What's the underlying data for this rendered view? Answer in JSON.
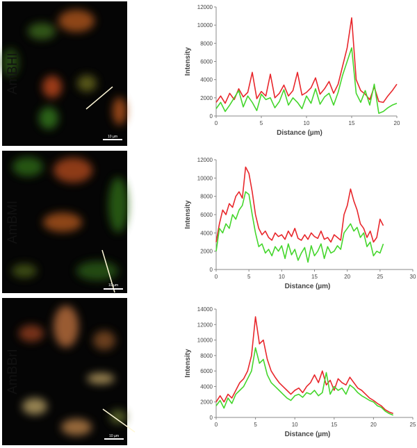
{
  "panels": [
    {
      "label": "AmBHI",
      "scale_bar": "10 µm"
    },
    {
      "label": "AmBMI",
      "scale_bar": "10 µm"
    },
    {
      "label": "AmBBrI",
      "scale_bar": "10 µm"
    }
  ],
  "chart_data": [
    {
      "type": "line",
      "xlabel": "Distance (µm)",
      "ylabel": "Intensity",
      "xlim": [
        0,
        20
      ],
      "xticks": [
        0,
        5,
        10,
        15,
        20
      ],
      "ylim": [
        0,
        12000
      ],
      "yticks": [
        0,
        2000,
        4000,
        6000,
        8000,
        10000,
        12000
      ],
      "x": [
        0,
        0.5,
        1,
        1.5,
        2,
        2.5,
        3,
        3.5,
        4,
        4.5,
        5,
        5.5,
        6,
        6.5,
        7,
        7.5,
        8,
        8.5,
        9,
        9.5,
        10,
        10.5,
        11,
        11.5,
        12,
        12.5,
        13,
        13.5,
        14,
        14.5,
        15,
        15.5,
        16,
        16.5,
        17,
        17.5,
        18,
        18.5,
        19,
        19.5,
        20
      ],
      "series": [
        {
          "color": "#e8262b",
          "values": [
            1500,
            2200,
            1400,
            2500,
            1800,
            3000,
            2100,
            2600,
            4800,
            1900,
            2700,
            2200,
            4600,
            2000,
            2500,
            3400,
            2200,
            2800,
            4800,
            2300,
            2600,
            3100,
            4200,
            2400,
            3000,
            3800,
            2500,
            3500,
            5500,
            7500,
            10800,
            4000,
            2800,
            2400,
            1800,
            3200,
            1600,
            1500,
            2200,
            2800,
            3500
          ]
        },
        {
          "color": "#44d62c",
          "values": [
            800,
            1500,
            500,
            1200,
            2000,
            2800,
            1000,
            2200,
            1500,
            600,
            2400,
            1800,
            2000,
            900,
            1600,
            2900,
            1200,
            2000,
            1500,
            800,
            2200,
            1400,
            3000,
            1300,
            2100,
            2500,
            1200,
            2600,
            4500,
            6000,
            7500,
            2500,
            1500,
            2800,
            1200,
            3500,
            300,
            500,
            900,
            1200,
            1400
          ]
        }
      ]
    },
    {
      "type": "line",
      "xlabel": "Distance (µm)",
      "ylabel": "Intensity",
      "xlim": [
        0,
        30
      ],
      "xticks": [
        0,
        5,
        10,
        15,
        20,
        25,
        30
      ],
      "ylim": [
        0,
        12000
      ],
      "yticks": [
        0,
        2000,
        4000,
        6000,
        8000,
        10000,
        12000
      ],
      "x": [
        0,
        0.5,
        1,
        1.5,
        2,
        2.5,
        3,
        3.5,
        4,
        4.5,
        5,
        5.5,
        6,
        6.5,
        7,
        7.5,
        8,
        8.5,
        9,
        9.5,
        10,
        10.5,
        11,
        11.5,
        12,
        12.5,
        13,
        13.5,
        14,
        14.5,
        15,
        15.5,
        16,
        16.5,
        17,
        17.5,
        18,
        18.5,
        19,
        19.5,
        20,
        20.5,
        21,
        21.5,
        22,
        22.5,
        23,
        23.5,
        24,
        24.5,
        25,
        25.5
      ],
      "series": [
        {
          "color": "#e8262b",
          "values": [
            3000,
            5000,
            6500,
            6000,
            7200,
            6800,
            8000,
            8500,
            7800,
            11200,
            10500,
            8500,
            6000,
            4500,
            3800,
            4200,
            3500,
            3200,
            4000,
            3600,
            3800,
            3300,
            4200,
            3600,
            4500,
            3400,
            3200,
            3800,
            3300,
            4000,
            3600,
            3400,
            4200,
            3300,
            3500,
            3000,
            3800,
            3500,
            3200,
            6000,
            7000,
            8800,
            7500,
            6500,
            5000,
            4500,
            3500,
            4200,
            3000,
            3500,
            5500,
            4800
          ]
        },
        {
          "color": "#44d62c",
          "values": [
            2000,
            4500,
            4000,
            5000,
            4500,
            6000,
            5500,
            6500,
            7000,
            8500,
            8200,
            6000,
            4000,
            2500,
            2800,
            1800,
            2200,
            1500,
            2500,
            2000,
            2600,
            1200,
            2800,
            1600,
            2200,
            1000,
            1800,
            2400,
            800,
            2600,
            1500,
            2000,
            2800,
            1200,
            2500,
            1800,
            2000,
            2600,
            2200,
            4000,
            4500,
            5000,
            4200,
            4600,
            3500,
            4000,
            2500,
            3000,
            1500,
            2000,
            1800,
            2800
          ]
        }
      ]
    },
    {
      "type": "line",
      "xlabel": "Distance (µm)",
      "ylabel": "Intensity",
      "xlim": [
        0,
        25
      ],
      "xticks": [
        0,
        5,
        10,
        15,
        20,
        25
      ],
      "ylim": [
        0,
        14000
      ],
      "yticks": [
        0,
        2000,
        4000,
        6000,
        8000,
        10000,
        12000,
        14000
      ],
      "x": [
        0,
        0.5,
        1,
        1.5,
        2,
        2.5,
        3,
        3.5,
        4,
        4.5,
        5,
        5.5,
        6,
        6.5,
        7,
        7.5,
        8,
        8.5,
        9,
        9.5,
        10,
        10.5,
        11,
        11.5,
        12,
        12.5,
        13,
        13.5,
        14,
        14.5,
        15,
        15.5,
        16,
        16.5,
        17,
        17.5,
        18,
        18.5,
        19,
        19.5,
        20,
        20.5,
        21,
        21.5,
        22,
        22.5
      ],
      "series": [
        {
          "color": "#e8262b",
          "values": [
            2000,
            2800,
            2000,
            3000,
            2500,
            3500,
            4500,
            5000,
            6000,
            8000,
            13000,
            9500,
            10000,
            7500,
            6000,
            5200,
            4500,
            4000,
            3500,
            3000,
            3500,
            3800,
            3200,
            4000,
            4500,
            5500,
            4500,
            6000,
            4200,
            4800,
            3500,
            5000,
            4500,
            4200,
            5200,
            4500,
            3800,
            3500,
            3000,
            2500,
            2200,
            1800,
            1500,
            1000,
            700,
            500
          ]
        },
        {
          "color": "#44d62c",
          "values": [
            1500,
            2200,
            1200,
            2500,
            1800,
            3000,
            3500,
            4000,
            5000,
            6000,
            9000,
            7000,
            7500,
            5500,
            4500,
            4000,
            3500,
            3000,
            2500,
            2200,
            2800,
            3000,
            2600,
            3200,
            3000,
            3500,
            2800,
            3200,
            5800,
            3000,
            4000,
            3500,
            3800,
            3000,
            4200,
            3800,
            3200,
            2800,
            2500,
            2200,
            2000,
            1500,
            1300,
            800,
            500,
            300
          ]
        }
      ]
    }
  ]
}
